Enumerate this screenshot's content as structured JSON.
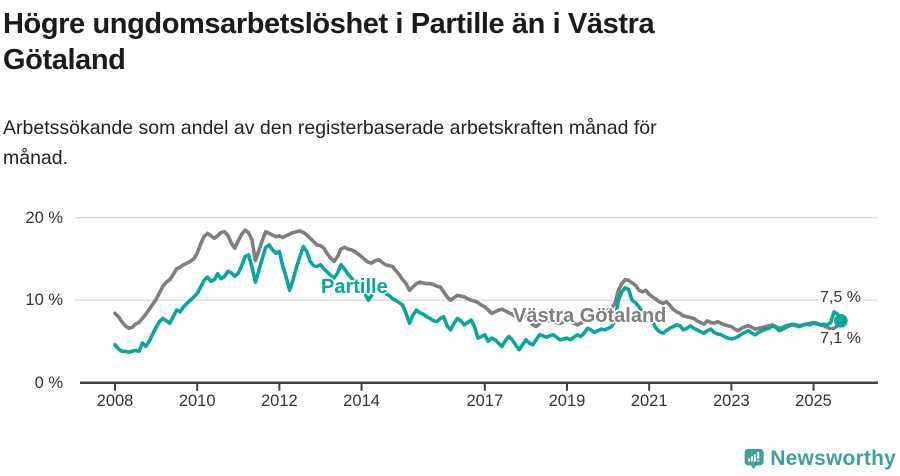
{
  "header": {
    "title_line1": "Högre ungdomsarbetslöshet i Partille än i Västra",
    "title_line2": "Götaland",
    "subtitle_line1": "Arbetssökande som andel av den registerbaserade arbetskraften månad för",
    "subtitle_line2": "månad."
  },
  "branding": {
    "logo_text": "Newsworthy",
    "logo_color": "#3f9f9c",
    "icon": "newsworthy-speech-bubble-bar-chart-icon"
  },
  "chart_data": {
    "type": "line",
    "title": "Högre ungdomsarbetslöshet i Partille än i Västra Götaland",
    "subtitle": "Arbetssökande som andel av den registerbaserade arbetskraften månad för månad.",
    "unit": "%",
    "frequency": "monthly",
    "x_start": "2008-01",
    "x_end": "2025-09",
    "x_ticks": [
      2008,
      2010,
      2012,
      2014,
      2017,
      2019,
      2021,
      2023,
      2025
    ],
    "y_ticks": [
      {
        "value": 0,
        "label": "0 %"
      },
      {
        "value": 10,
        "label": "10 %"
      },
      {
        "value": 20,
        "label": "20 %"
      }
    ],
    "ylim": [
      0,
      20
    ],
    "grid": "horizontal",
    "axis_color": "#3f3f3f",
    "grid_color": "#dcdcdc",
    "series": [
      {
        "name": "Västra Götaland",
        "color": "#7e7e7e",
        "end_label": "7,1 %",
        "endpoint_dot": false,
        "values": [
          8.4,
          8.0,
          7.4,
          6.9,
          6.6,
          6.7,
          7.1,
          7.3,
          7.8,
          8.3,
          8.9,
          9.5,
          10.1,
          10.9,
          11.7,
          12.2,
          12.5,
          13.1,
          13.8,
          14.0,
          14.3,
          14.5,
          14.7,
          15.0,
          15.7,
          16.8,
          17.7,
          18.1,
          17.8,
          17.5,
          17.8,
          18.2,
          18.3,
          17.8,
          16.9,
          16.3,
          17.2,
          18.0,
          18.5,
          18.2,
          17.3,
          14.8,
          16.0,
          17.2,
          18.3,
          18.1,
          17.9,
          17.7,
          17.8,
          17.6,
          17.8,
          18.0,
          18.2,
          18.3,
          18.4,
          18.2,
          17.9,
          17.5,
          17.1,
          16.7,
          16.6,
          16.3,
          15.6,
          15.1,
          14.7,
          15.3,
          16.2,
          16.4,
          16.2,
          16.1,
          15.9,
          15.6,
          15.3,
          14.9,
          14.6,
          14.5,
          14.8,
          14.9,
          14.6,
          14.3,
          14.2,
          14.1,
          13.6,
          13.1,
          12.5,
          12.0,
          11.2,
          11.6,
          12.0,
          12.2,
          12.1,
          12.0,
          12.0,
          11.9,
          11.7,
          11.6,
          11.0,
          10.4,
          10.0,
          10.3,
          10.6,
          10.5,
          10.4,
          10.2,
          10.0,
          9.9,
          9.7,
          9.4,
          9.2,
          8.8,
          8.4,
          8.6,
          8.8,
          8.9,
          8.7,
          8.5,
          8.3,
          8.0,
          7.8,
          7.9,
          8.0,
          7.6,
          7.0,
          6.8,
          7.2,
          7.5,
          7.6,
          7.5,
          7.4,
          7.3,
          7.2,
          7.4,
          7.6,
          7.4,
          7.2,
          7.0,
          7.2,
          7.5,
          7.8,
          7.9,
          8.0,
          8.2,
          8.4,
          8.6,
          8.8,
          9.0,
          9.6,
          11.2,
          12.0,
          12.5,
          12.4,
          12.1,
          11.8,
          11.2,
          11.0,
          11.2,
          10.7,
          10.4,
          10.1,
          9.8,
          9.6,
          9.8,
          9.4,
          8.9,
          8.6,
          8.4,
          8.1,
          8.0,
          7.9,
          7.8,
          7.5,
          7.3,
          7.1,
          7.5,
          7.3,
          7.2,
          7.4,
          7.2,
          7.0,
          6.9,
          6.8,
          6.5,
          6.3,
          6.6,
          6.8,
          6.9,
          6.7,
          6.5,
          6.6,
          6.7,
          6.8,
          6.9,
          7.0,
          6.8,
          6.6,
          6.7,
          6.9,
          7.0,
          7.1,
          7.0,
          6.9,
          7.0,
          7.1,
          7.2,
          7.3,
          7.2,
          7.0,
          6.9,
          6.7,
          6.5,
          6.6,
          6.9,
          7.1
        ]
      },
      {
        "name": "Partille",
        "color": "#0ba59b",
        "end_label": "7,5 %",
        "endpoint_dot": true,
        "values": [
          4.6,
          4.1,
          3.8,
          3.8,
          3.7,
          3.8,
          3.9,
          3.8,
          4.8,
          4.4,
          5.0,
          5.9,
          6.7,
          7.4,
          7.8,
          7.5,
          7.2,
          8.0,
          8.8,
          8.6,
          9.2,
          9.6,
          10.0,
          10.4,
          10.8,
          11.6,
          12.4,
          12.8,
          12.3,
          12.5,
          13.2,
          12.6,
          12.9,
          13.5,
          13.3,
          12.9,
          13.3,
          14.2,
          15.3,
          15.5,
          14.0,
          12.2,
          13.6,
          15.0,
          16.4,
          16.7,
          16.1,
          15.7,
          15.9,
          14.1,
          12.8,
          11.2,
          12.5,
          14.0,
          15.3,
          16.5,
          15.9,
          14.7,
          14.2,
          14.1,
          14.3,
          13.8,
          13.4,
          13.0,
          12.7,
          13.3,
          14.3,
          13.8,
          13.2,
          12.7,
          12.3,
          11.9,
          11.6,
          10.8,
          10.0,
          10.6,
          11.4,
          11.2,
          11.0,
          10.8,
          10.6,
          10.2,
          10.0,
          9.7,
          9.4,
          8.4,
          7.2,
          8.2,
          8.8,
          8.5,
          8.3,
          8.0,
          7.8,
          7.5,
          7.4,
          7.8,
          8.0,
          6.9,
          6.4,
          7.2,
          7.8,
          7.5,
          7.0,
          7.3,
          7.6,
          6.8,
          5.4,
          5.6,
          5.8,
          5.0,
          5.4,
          5.2,
          4.8,
          4.4,
          5.1,
          5.6,
          5.2,
          4.6,
          4.0,
          4.6,
          5.2,
          4.8,
          4.6,
          5.2,
          5.8,
          5.7,
          5.5,
          5.7,
          5.8,
          5.5,
          5.2,
          5.3,
          5.4,
          5.2,
          5.5,
          5.8,
          5.6,
          6.0,
          6.6,
          6.4,
          6.1,
          6.3,
          6.5,
          6.4,
          6.6,
          6.8,
          7.5,
          10.0,
          11.0,
          11.5,
          11.3,
          10.0,
          9.7,
          9.2,
          8.6,
          8.2,
          7.8,
          7.4,
          6.6,
          6.2,
          6.0,
          6.3,
          6.6,
          6.8,
          7.0,
          6.9,
          6.4,
          6.6,
          6.9,
          6.6,
          6.4,
          6.2,
          6.0,
          6.3,
          6.5,
          6.1,
          5.9,
          5.8,
          5.6,
          5.4,
          5.3,
          5.4,
          5.6,
          5.9,
          6.1,
          6.3,
          6.0,
          5.8,
          6.1,
          6.3,
          6.5,
          6.6,
          6.9,
          6.7,
          6.3,
          6.5,
          6.7,
          6.9,
          7.0,
          6.9,
          6.8,
          7.0,
          7.1,
          7.0,
          7.2,
          7.1,
          7.0,
          7.1,
          7.0,
          7.3,
          8.6,
          8.3,
          7.5
        ]
      }
    ]
  }
}
